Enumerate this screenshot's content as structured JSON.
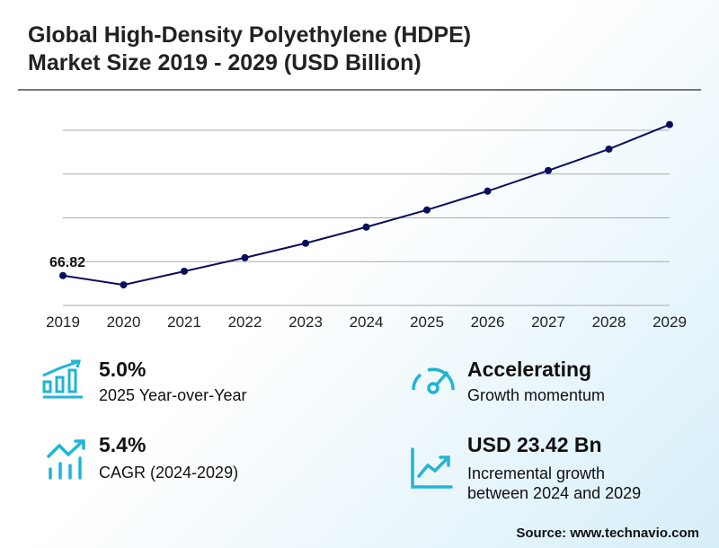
{
  "title_line1": "Global High-Density Polyethylene (HDPE)",
  "title_line2": "Market Size 2019 - 2029 (USD Billion)",
  "chart_data": {
    "type": "line",
    "categories": [
      "2019",
      "2020",
      "2021",
      "2022",
      "2023",
      "2024",
      "2025",
      "2026",
      "2027",
      "2028",
      "2029"
    ],
    "values": [
      66.82,
      64.7,
      67.8,
      70.9,
      74.2,
      77.9,
      81.8,
      86.1,
      90.8,
      95.7,
      101.3
    ],
    "first_label": "66.82",
    "ylim": [
      60,
      100
    ],
    "gridlines": [
      70,
      80,
      90,
      100
    ],
    "line_color": "#0d0d5c",
    "grid": true
  },
  "stats": {
    "yoy": {
      "value": "5.0%",
      "label": "2025 Year-over-Year"
    },
    "cagr": {
      "value": "5.4%",
      "label": "CAGR (2024-2029)"
    },
    "momentum": {
      "value": "Accelerating",
      "label": "Growth momentum"
    },
    "incremental": {
      "value": "USD 23.42 Bn",
      "label1": "Incremental growth",
      "label2": "between 2024 and 2029"
    }
  },
  "source": "Source: www.technavio.com",
  "accent": "#1fb5d6"
}
